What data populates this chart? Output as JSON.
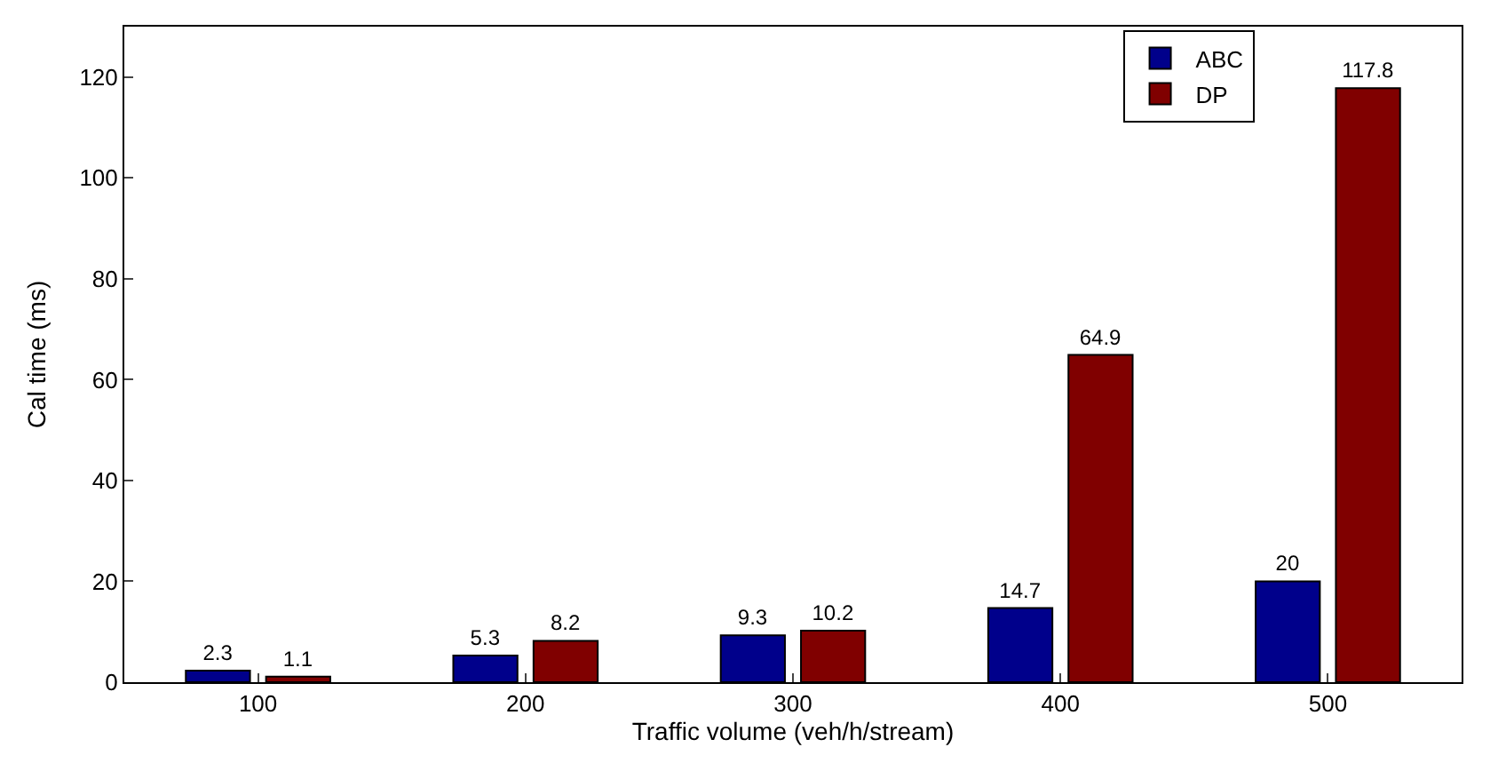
{
  "chart_data": {
    "type": "bar",
    "xlabel": "Traffic volume (veh/h/stream)",
    "ylabel": "Cal time (ms)",
    "categories": [
      "100",
      "200",
      "300",
      "400",
      "500"
    ],
    "series": [
      {
        "name": "ABC",
        "color": "#00008b",
        "values": [
          2.3,
          5.3,
          9.3,
          14.7,
          20
        ]
      },
      {
        "name": "DP",
        "color": "#800000",
        "values": [
          1.1,
          8.2,
          10.2,
          64.9,
          117.8
        ]
      }
    ],
    "ylim": [
      0,
      130
    ],
    "yticks": [
      0,
      20,
      40,
      60,
      80,
      100,
      120
    ],
    "legend": "top right",
    "data_labels": true
  }
}
